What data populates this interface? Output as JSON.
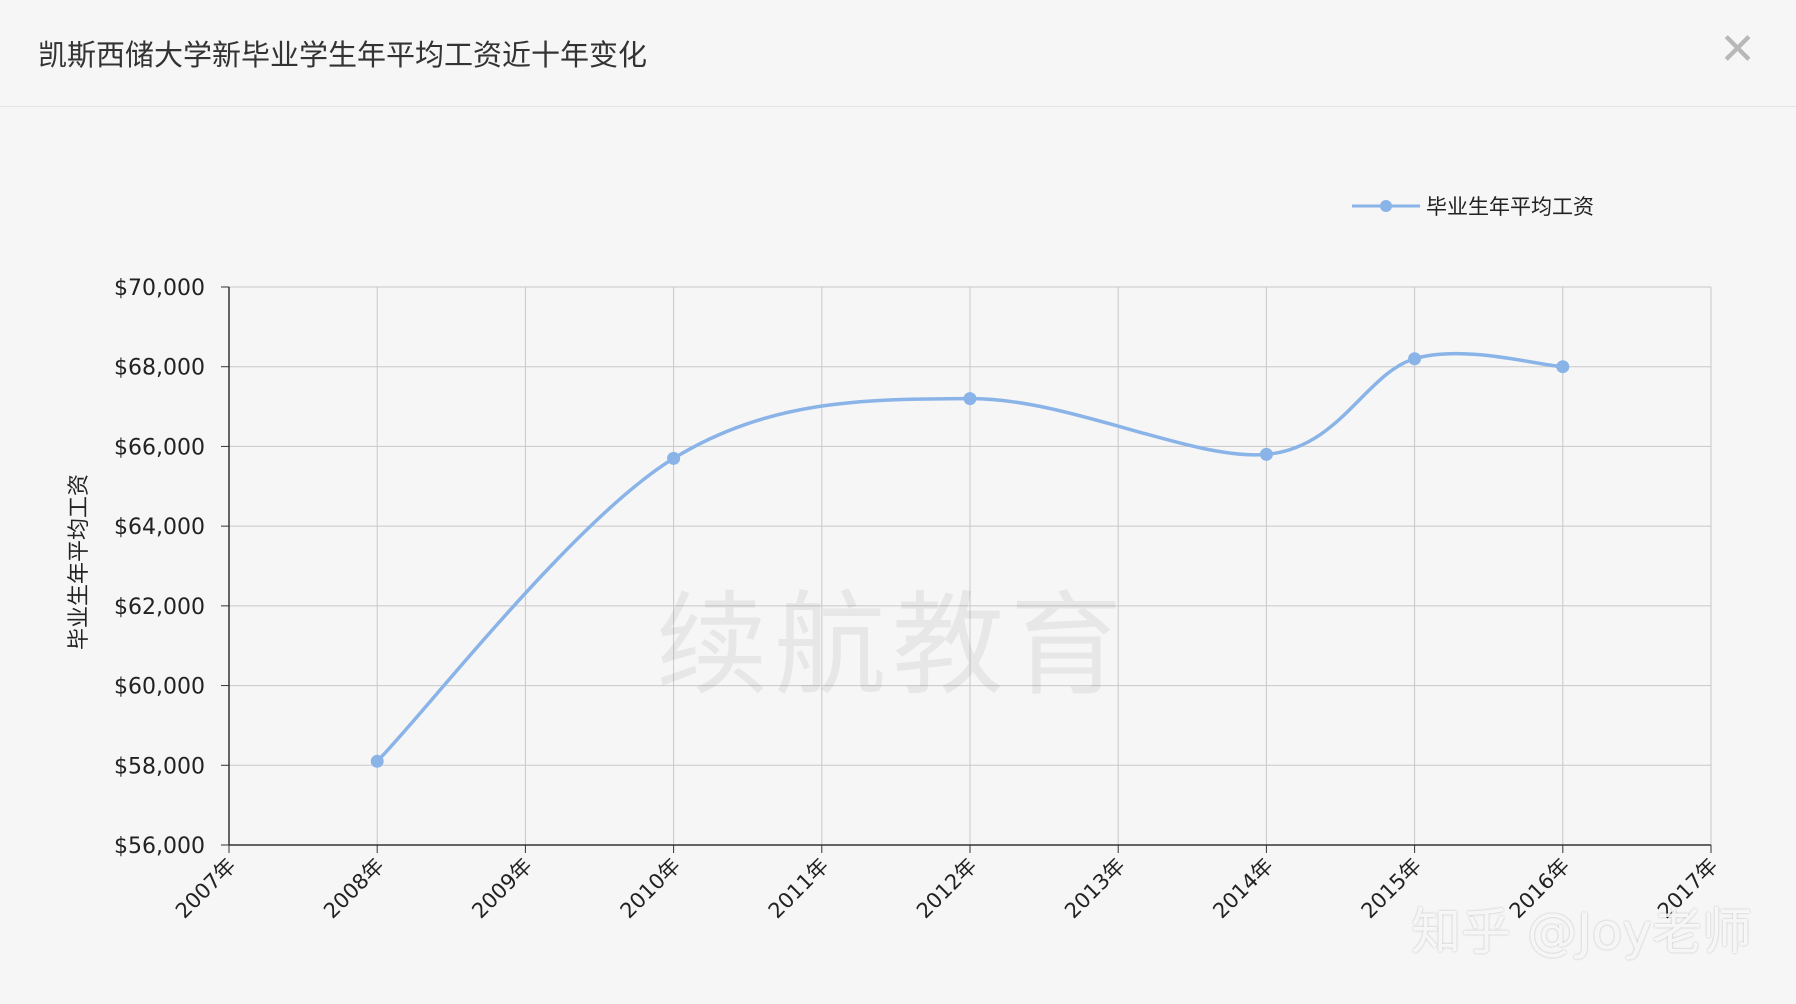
{
  "window": {
    "title": "凯斯西储大学新毕业学生年平均工资近十年变化",
    "close_label": "✕"
  },
  "watermark": "续航教育",
  "credit": "知乎 @Joy老师",
  "chart_data": {
    "type": "line",
    "smooth": true,
    "title": "凯斯西储大学新毕业学生年平均工资近十年变化",
    "xlabel": "",
    "ylabel": "毕业生年平均工资",
    "categories": [
      "2007年",
      "2008年",
      "2009年",
      "2010年",
      "2011年",
      "2012年",
      "2013年",
      "2014年",
      "2015年",
      "2016年",
      "2017年"
    ],
    "yticks": [
      "$56,000",
      "$58,000",
      "$60,000",
      "$62,000",
      "$64,000",
      "$66,000",
      "$68,000",
      "$70,000"
    ],
    "ylim": [
      56000,
      70000
    ],
    "grid": true,
    "legend_position": "top-right",
    "colors": {
      "series": "#8ab4e8",
      "grid": "#c8c8c8",
      "axis": "#333333"
    },
    "series": [
      {
        "name": "毕业生年平均工资",
        "x": [
          "2008年",
          "2010年",
          "2012年",
          "2014年",
          "2015年",
          "2016年"
        ],
        "values": [
          58100,
          65700,
          67200,
          65800,
          68200,
          68000
        ]
      }
    ]
  }
}
